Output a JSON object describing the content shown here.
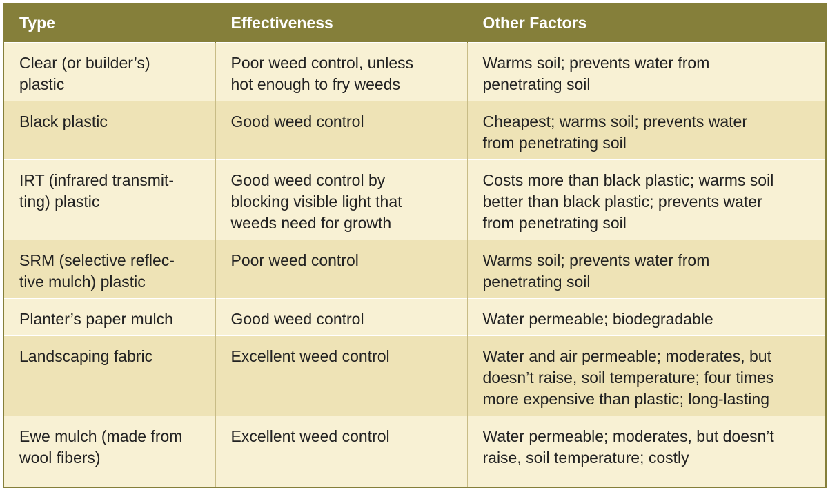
{
  "table": {
    "header": [
      "Type",
      "Effectiveness",
      "Other Factors"
    ],
    "rows": [
      [
        [
          "Clear (or builder’s)",
          "plastic"
        ],
        [
          "Poor weed control, unless",
          "hot enough to fry weeds"
        ],
        [
          "Warms soil; prevents water from",
          "penetrating soil"
        ]
      ],
      [
        [
          "Black plastic"
        ],
        [
          "Good weed control"
        ],
        [
          "Cheapest; warms soil; prevents water",
          "from penetrating soil"
        ]
      ],
      [
        [
          "IRT (infrared transmit-",
          "ting) plastic"
        ],
        [
          "Good weed control by",
          "blocking visible light that",
          "weeds need for growth"
        ],
        [
          "Costs more than black plastic; warms soil",
          "better than black plastic; prevents water",
          "from penetrating soil"
        ]
      ],
      [
        [
          "SRM (selective reflec-",
          "tive mulch) plastic"
        ],
        [
          "Poor weed control"
        ],
        [
          "Warms soil; prevents water from",
          "penetrating soil"
        ]
      ],
      [
        [
          "Planter’s paper mulch"
        ],
        [
          "Good weed control"
        ],
        [
          "Water permeable; biodegradable"
        ]
      ],
      [
        [
          "Landscaping fabric"
        ],
        [
          "Excellent weed control"
        ],
        [
          "Water and air permeable; moderates, but",
          "doesn’t raise, soil temperature; four times",
          "more expensive than plastic; long-lasting"
        ]
      ],
      [
        [
          "Ewe mulch (made from",
          "wool fibers)"
        ],
        [
          "Excellent weed control"
        ],
        [
          "Water permeable; moderates, but doesn’t",
          "raise, soil temperature; costly"
        ]
      ]
    ]
  }
}
